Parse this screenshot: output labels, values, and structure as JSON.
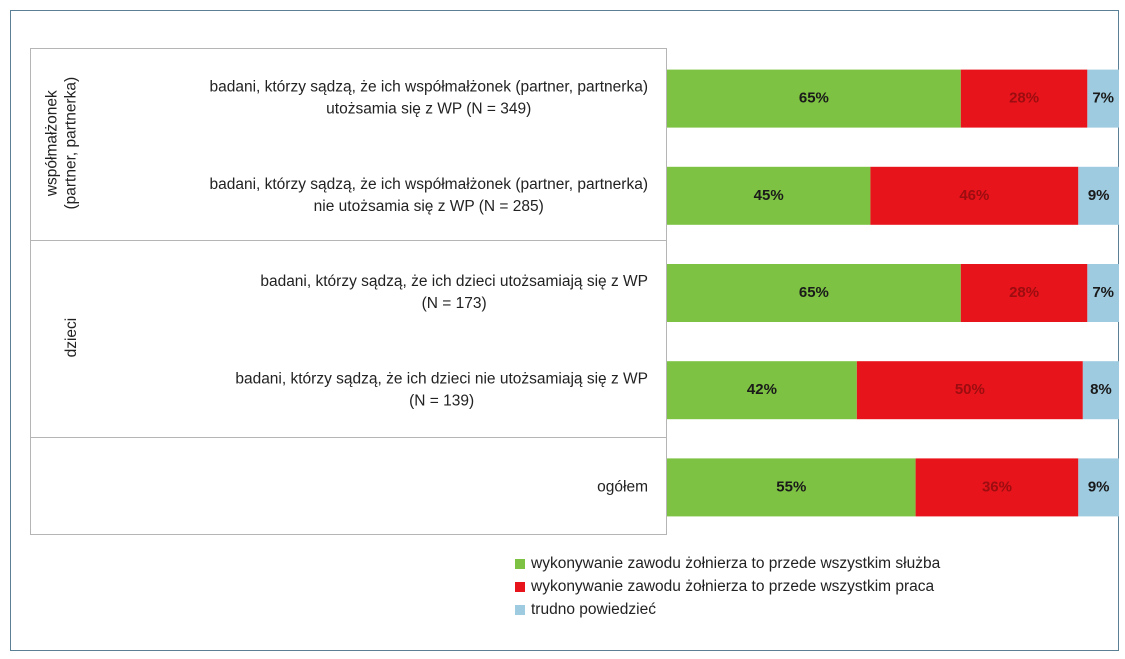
{
  "chart_data": {
    "type": "stacked_barh",
    "groups": [
      [
        "współmałżonek",
        "(partner, partnerka)"
      ],
      [
        "dzieci"
      ]
    ],
    "categories": [
      [
        "badani, którzy sądzą, że ich współmałżonek (partner, partnerka)",
        "utożsamia się z WP (N = 349)"
      ],
      [
        "badani, którzy sądzą, że ich współmałżonek (partner, partnerka)",
        "nie utożsamia się z WP (N = 285)"
      ],
      [
        "badani, którzy sądzą, że ich dzieci utożsamiają się z WP",
        "(N = 173)"
      ],
      [
        "badani, którzy sądzą, że ich dzieci nie utożsamiają się z WP",
        "(N = 139)"
      ],
      [
        "ogółem"
      ]
    ],
    "series": [
      {
        "name": "wykonywanie zawodu żołnierza to przede wszystkim służba",
        "color": "#7dc242",
        "label_color": "#1a1a1a",
        "values": [
          65,
          45,
          65,
          42,
          55
        ],
        "value_labels": [
          "65%",
          "45%",
          "65%",
          "42%",
          "55%"
        ]
      },
      {
        "name": "wykonywanie zawodu żołnierza to przede wszystkim praca",
        "color": "#e8141b",
        "label_color": "#9b0d10",
        "values": [
          28,
          46,
          28,
          50,
          36
        ],
        "value_labels": [
          "28%",
          "46%",
          "28%",
          "50%",
          "36%"
        ]
      },
      {
        "name": "trudno powiedzieć",
        "color": "#9ecbe0",
        "label_color": "#1a1a1a",
        "values": [
          7,
          9,
          7,
          8,
          9
        ],
        "value_labels": [
          "7%",
          "9%",
          "7%",
          "8%",
          "9%"
        ]
      }
    ],
    "xlim": [
      0,
      100
    ]
  }
}
